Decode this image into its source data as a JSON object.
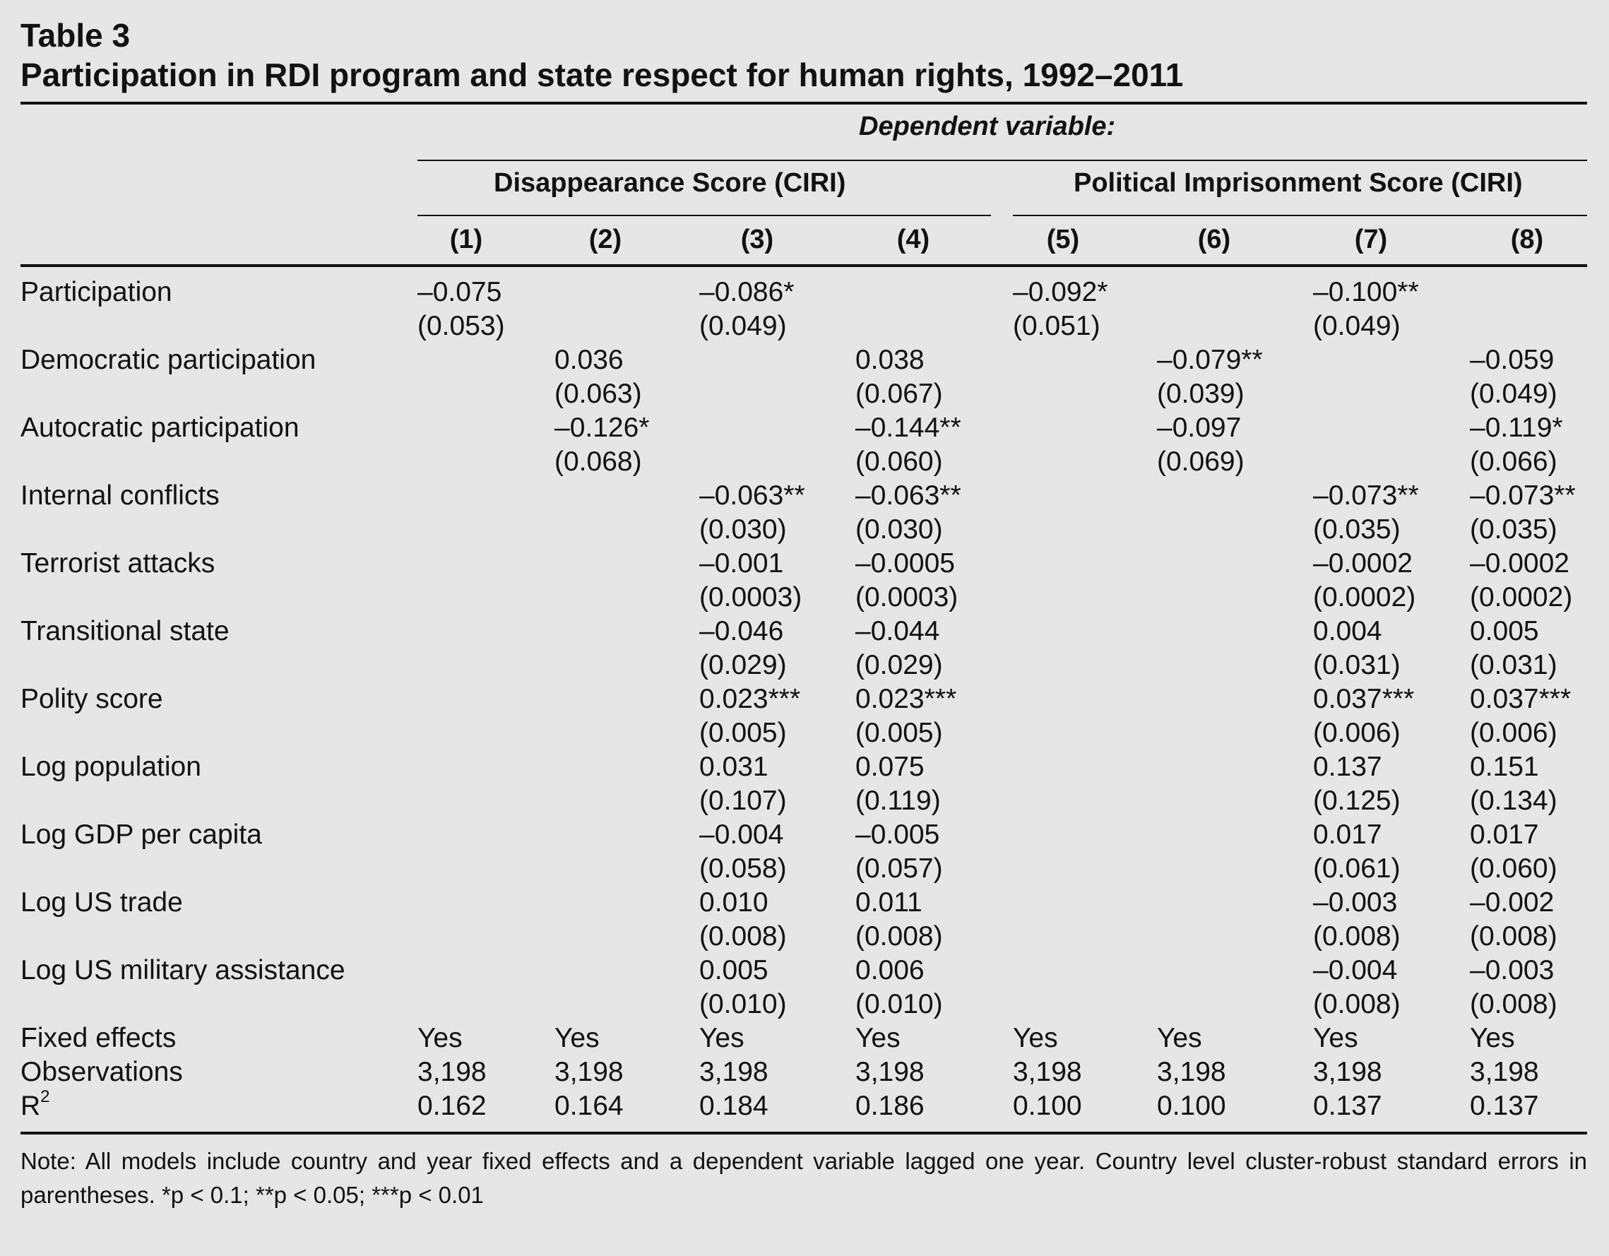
{
  "table_label": "Table 3",
  "table_title": "Participation in RDI program and state respect for human rights, 1992–2011",
  "dependent_variable_label": "Dependent variable:",
  "groups": [
    {
      "label": "Disappearance Score (CIRI)"
    },
    {
      "label": "Political Imprisonment Score (CIRI)"
    }
  ],
  "columns": [
    "(1)",
    "(2)",
    "(3)",
    "(4)",
    "(5)",
    "(6)",
    "(7)",
    "(8)"
  ],
  "rows": [
    {
      "label": "Participation",
      "coef": [
        "–0.075",
        "",
        "–0.086*",
        "",
        "–0.092*",
        "",
        "–0.100**",
        ""
      ],
      "se": [
        "(0.053)",
        "",
        "(0.049)",
        "",
        "(0.051)",
        "",
        "(0.049)",
        ""
      ]
    },
    {
      "label": "Democratic participation",
      "coef": [
        "",
        "0.036",
        "",
        "0.038",
        "",
        "–0.079**",
        "",
        "–0.059"
      ],
      "se": [
        "",
        "(0.063)",
        "",
        "(0.067)",
        "",
        "(0.039)",
        "",
        "(0.049)"
      ]
    },
    {
      "label": "Autocratic participation",
      "coef": [
        "",
        "–0.126*",
        "",
        "–0.144**",
        "",
        "–0.097",
        "",
        "–0.119*"
      ],
      "se": [
        "",
        "(0.068)",
        "",
        "(0.060)",
        "",
        "(0.069)",
        "",
        "(0.066)"
      ]
    },
    {
      "label": "Internal conflicts",
      "coef": [
        "",
        "",
        "–0.063**",
        "–0.063**",
        "",
        "",
        "–0.073**",
        "–0.073**"
      ],
      "se": [
        "",
        "",
        "(0.030)",
        "(0.030)",
        "",
        "",
        "(0.035)",
        "(0.035)"
      ]
    },
    {
      "label": "Terrorist attacks",
      "coef": [
        "",
        "",
        "–0.001",
        "–0.0005",
        "",
        "",
        "–0.0002",
        "–0.0002"
      ],
      "se": [
        "",
        "",
        "(0.0003)",
        "(0.0003)",
        "",
        "",
        "(0.0002)",
        "(0.0002)"
      ]
    },
    {
      "label": "Transitional state",
      "coef": [
        "",
        "",
        "–0.046",
        "–0.044",
        "",
        "",
        "0.004",
        "0.005"
      ],
      "se": [
        "",
        "",
        "(0.029)",
        "(0.029)",
        "",
        "",
        "(0.031)",
        "(0.031)"
      ]
    },
    {
      "label": "Polity score",
      "coef": [
        "",
        "",
        "0.023***",
        "0.023***",
        "",
        "",
        "0.037***",
        "0.037***"
      ],
      "se": [
        "",
        "",
        "(0.005)",
        "(0.005)",
        "",
        "",
        "(0.006)",
        "(0.006)"
      ]
    },
    {
      "label": "Log population",
      "coef": [
        "",
        "",
        "0.031",
        "0.075",
        "",
        "",
        "0.137",
        "0.151"
      ],
      "se": [
        "",
        "",
        "(0.107)",
        "(0.119)",
        "",
        "",
        "(0.125)",
        "(0.134)"
      ]
    },
    {
      "label": "Log GDP per capita",
      "coef": [
        "",
        "",
        "–0.004",
        "–0.005",
        "",
        "",
        "0.017",
        "0.017"
      ],
      "se": [
        "",
        "",
        "(0.058)",
        "(0.057)",
        "",
        "",
        "(0.061)",
        "(0.060)"
      ]
    },
    {
      "label": "Log US trade",
      "coef": [
        "",
        "",
        "0.010",
        "0.011",
        "",
        "",
        "–0.003",
        "–0.002"
      ],
      "se": [
        "",
        "",
        "(0.008)",
        "(0.008)",
        "",
        "",
        "(0.008)",
        "(0.008)"
      ]
    },
    {
      "label": "Log US military assistance",
      "coef": [
        "",
        "",
        "0.005",
        "0.006",
        "",
        "",
        "–0.004",
        "–0.003"
      ],
      "se": [
        "",
        "",
        "(0.010)",
        "(0.010)",
        "",
        "",
        "(0.008)",
        "(0.008)"
      ]
    }
  ],
  "footer_rows": [
    {
      "label": "Fixed effects",
      "values": [
        "Yes",
        "Yes",
        "Yes",
        "Yes",
        "Yes",
        "Yes",
        "Yes",
        "Yes"
      ]
    },
    {
      "label": "Observations",
      "values": [
        "3,198",
        "3,198",
        "3,198",
        "3,198",
        "3,198",
        "3,198",
        "3,198",
        "3,198"
      ]
    },
    {
      "label": "R",
      "label_sup": "2",
      "values": [
        "0.162",
        "0.164",
        "0.184",
        "0.186",
        "0.100",
        "0.100",
        "0.137",
        "0.137"
      ]
    }
  ],
  "note": "Note: All models include country and year fixed effects and a dependent variable lagged one year. Country level cluster-robust standard errors in parentheses. *p < 0.1; **p < 0.05; ***p < 0.01"
}
